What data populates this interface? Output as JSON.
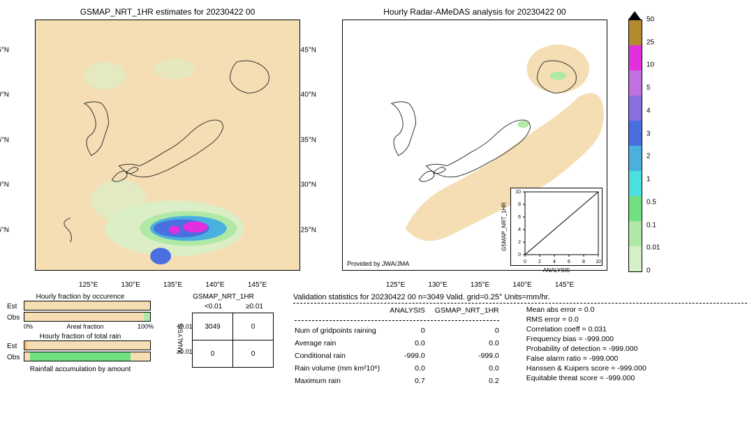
{
  "map_left": {
    "title": "GSMAP_NRT_1HR estimates for 20230422 00",
    "bg_color": "#f5deb3",
    "land_color": "#f5deb3",
    "coast_color": "#303030",
    "ylat_ticks": [
      "45°N",
      "40°N",
      "35°N",
      "30°N",
      "25°N"
    ],
    "ylat_pos_pct": [
      12,
      30,
      48,
      66,
      84
    ],
    "xlon_ticks": [
      "125°E",
      "130°E",
      "135°E",
      "140°E",
      "145°E"
    ],
    "xlon_pos_pct": [
      20,
      36,
      52,
      68,
      84
    ],
    "rain": {
      "heavy_color": "#d030d0",
      "mid_color": "#4a6fe0",
      "light_color": "#b0e8c0"
    }
  },
  "map_right": {
    "title": "Hourly Radar-AMeDAS analysis for 20230422 00",
    "bg_color": "#ffffff",
    "coverage_color": "#f5deb3",
    "coast_color": "#303030",
    "provided": "Provided by JWA/JMA",
    "inset": {
      "xlabel": "ANALYSIS",
      "ylabel": "GSMAP_NRT_1HR",
      "xmin": 0,
      "xmax": 10,
      "ymin": 0,
      "ymax": 10,
      "ticks": [
        "0",
        "2",
        "4",
        "6",
        "8",
        "10"
      ]
    }
  },
  "colorbar": {
    "levels": [
      {
        "v": "50",
        "c": "#000000",
        "h": 0
      },
      {
        "v": "25",
        "c": "#b38a2f",
        "h": 9
      },
      {
        "v": "10",
        "c": "#e030e0",
        "h": 9
      },
      {
        "v": "5",
        "c": "#c070e0",
        "h": 9
      },
      {
        "v": "4",
        "c": "#8a6fe0",
        "h": 9
      },
      {
        "v": "3",
        "c": "#4a6fe0",
        "h": 9
      },
      {
        "v": "2",
        "c": "#4ab0e0",
        "h": 9
      },
      {
        "v": "1",
        "c": "#4ae0e0",
        "h": 9
      },
      {
        "v": "0.5",
        "c": "#70e080",
        "h": 9
      },
      {
        "v": "0.1",
        "c": "#b0e8a6",
        "h": 9
      },
      {
        "v": "0.01",
        "c": "#d8f0c8",
        "h": 9
      },
      {
        "v": "0",
        "c": "#f5deb3",
        "h": 0
      }
    ],
    "label_positions_pct": [
      0,
      10,
      20,
      30,
      40,
      50,
      60,
      70,
      80,
      90,
      100
    ]
  },
  "bars": {
    "occurence": {
      "title": "Hourly fraction by occurence",
      "est_pct": 0.5,
      "obs_pct": 5,
      "scale_left": "0%",
      "scale_mid": "Areal fraction",
      "scale_right": "100%"
    },
    "totalrain": {
      "title": "Hourly fraction of total rain",
      "est_pct": 2,
      "obs_pct": 80
    },
    "accum_title": "Rainfall accumulation by amount",
    "est_label": "Est",
    "obs_label": "Obs"
  },
  "contingency": {
    "title": "GSMAP_NRT_1HR",
    "col_hdrs": [
      "<0.01",
      "≥0.01"
    ],
    "row_hdrs": [
      "<0.01",
      "≥0.01"
    ],
    "y_axis": "ANALYSIS",
    "cells": [
      [
        "3049",
        "0"
      ],
      [
        "0",
        "0"
      ]
    ]
  },
  "stats": {
    "title": "Validation statistics for 20230422 00  n=3049 Valid. grid=0.25°  Units=mm/hr.",
    "col1": "ANALYSIS",
    "col2": "GSMAP_NRT_1HR",
    "rows": [
      {
        "name": "Num of gridpoints raining",
        "a": "0",
        "b": "0"
      },
      {
        "name": "Average rain",
        "a": "0.0",
        "b": "0.0"
      },
      {
        "name": "Conditional rain",
        "a": "-999.0",
        "b": "-999.0"
      },
      {
        "name": "Rain volume (mm km²10⁶)",
        "a": "0.0",
        "b": "0.0"
      },
      {
        "name": "Maximum rain",
        "a": "0.7",
        "b": "0.2"
      }
    ],
    "right": [
      "Mean abs error =    0.0",
      "RMS error =    0.0",
      "Correlation coeff =  0.031",
      "Frequency bias = -999.000",
      "Probability of detection = -999.000",
      "False alarm ratio = -999.000",
      "Hanssen & Kuipers score = -999.000",
      "Equitable threat score = -999.000"
    ]
  }
}
